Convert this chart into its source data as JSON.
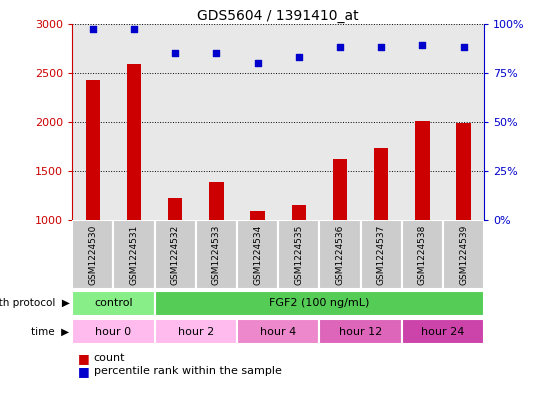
{
  "title": "GDS5604 / 1391410_at",
  "samples": [
    "GSM1224530",
    "GSM1224531",
    "GSM1224532",
    "GSM1224533",
    "GSM1224534",
    "GSM1224535",
    "GSM1224536",
    "GSM1224537",
    "GSM1224538",
    "GSM1224539"
  ],
  "counts": [
    2430,
    2590,
    1230,
    1390,
    1100,
    1155,
    1625,
    1740,
    2010,
    1990
  ],
  "percentile_ranks": [
    97,
    97,
    85,
    85,
    80,
    83,
    88,
    88,
    89,
    88
  ],
  "ylim_left": [
    1000,
    3000
  ],
  "ylim_right": [
    0,
    100
  ],
  "yticks_left": [
    1000,
    1500,
    2000,
    2500,
    3000
  ],
  "yticks_right": [
    0,
    25,
    50,
    75,
    100
  ],
  "bar_color": "#cc0000",
  "scatter_color": "#0000cc",
  "bar_bottom": 1000,
  "growth_protocol_row": [
    {
      "label": "control",
      "start": 0,
      "end": 2,
      "color": "#88ee88"
    },
    {
      "label": "FGF2 (100 ng/mL)",
      "start": 2,
      "end": 10,
      "color": "#55cc55"
    }
  ],
  "time_row": [
    {
      "label": "hour 0",
      "start": 0,
      "end": 2,
      "color": "#ffbbee"
    },
    {
      "label": "hour 2",
      "start": 2,
      "end": 4,
      "color": "#ffbbee"
    },
    {
      "label": "hour 4",
      "start": 4,
      "end": 6,
      "color": "#ee88cc"
    },
    {
      "label": "hour 12",
      "start": 6,
      "end": 8,
      "color": "#dd66bb"
    },
    {
      "label": "hour 24",
      "start": 8,
      "end": 10,
      "color": "#cc44aa"
    }
  ],
  "row_label_growth": "growth protocol",
  "row_label_time": "time",
  "legend_count": "count",
  "legend_percentile": "percentile rank within the sample",
  "axis_left_color": "#cc0000",
  "axis_right_color": "#0000cc",
  "sample_bg_color": "#cccccc",
  "plot_bg_color": "#ffffff"
}
